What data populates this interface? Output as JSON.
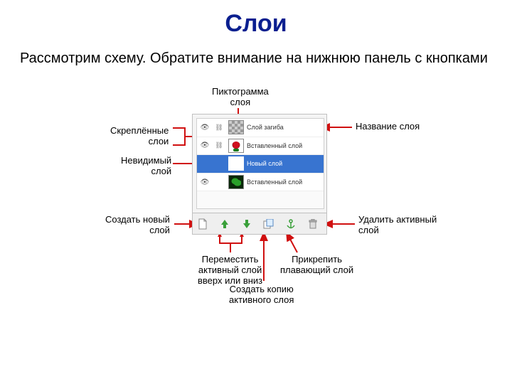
{
  "title": "Слои",
  "subtitle": "Рассмотрим схему.  Обратите внимание на нижнюю панель с кнопками",
  "layers": [
    {
      "name": "Слой загиба",
      "visible": true,
      "linked": true,
      "thumb": "checker"
    },
    {
      "name": "Вставленный слой",
      "visible": true,
      "linked": true,
      "thumb": "rose"
    },
    {
      "name": "Новый слой",
      "visible": false,
      "linked": false,
      "thumb": "blank",
      "selected": true
    },
    {
      "name": "Вставленный слой",
      "visible": true,
      "linked": false,
      "thumb": "leaf"
    },
    {
      "name": "",
      "visible": false,
      "linked": false,
      "thumb": "none"
    }
  ],
  "callouts": {
    "top": "Пиктограмма\nслоя",
    "left_top": "Скреплённые\nслои",
    "left_mid": "Невидимый\nслой",
    "right_top": "Название слоя",
    "left_bot": "Создать новый\nслой",
    "right_bot": "Удалить активный\nслой",
    "bot_1": "Переместить\nактивный слой\nвверх или вниз",
    "bot_2": "Создать копию\nактивного слоя",
    "bot_3": "Прикрепить\nплавающий слой"
  },
  "colors": {
    "title": "#0a1f8f",
    "arrow": "#d01010",
    "selected_bg": "#3874d0"
  },
  "icons": {
    "new": "new-layer",
    "up": "move-up",
    "down": "move-down",
    "dup": "duplicate",
    "anchor": "anchor",
    "delete": "trash"
  }
}
